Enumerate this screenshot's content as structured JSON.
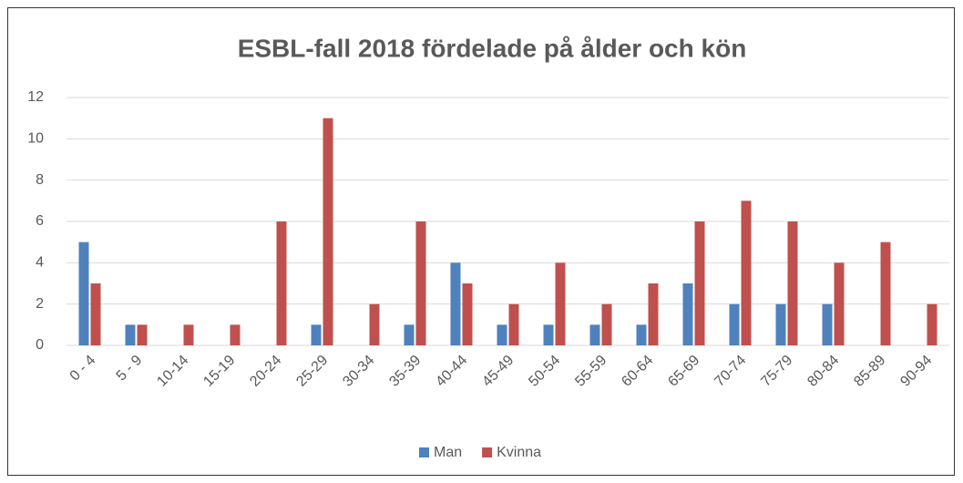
{
  "chart_data": {
    "type": "bar",
    "title": "ESBL-fall 2018 fördelade på ålder och kön",
    "categories": [
      "0 - 4",
      "5 - 9",
      "10-14",
      "15-19",
      "20-24",
      "25-29",
      "30-34",
      "35-39",
      "40-44",
      "45-49",
      "50-54",
      "55-59",
      "60-64",
      "65-69",
      "70-74",
      "75-79",
      "80-84",
      "85-89",
      "90-94"
    ],
    "series": [
      {
        "name": "Man",
        "color": "#4f81bd",
        "values": [
          5,
          1,
          0,
          0,
          0,
          1,
          0,
          1,
          4,
          1,
          1,
          1,
          1,
          3,
          2,
          2,
          2,
          0,
          0
        ]
      },
      {
        "name": "Kvinna",
        "color": "#c0504d",
        "values": [
          3,
          1,
          1,
          1,
          6,
          11,
          2,
          6,
          3,
          2,
          4,
          2,
          3,
          6,
          7,
          6,
          4,
          5,
          2
        ]
      }
    ],
    "ylim": [
      0,
      12
    ],
    "yticks": [
      0,
      2,
      4,
      6,
      8,
      10,
      12
    ],
    "grid": true,
    "legend": "bottom"
  }
}
